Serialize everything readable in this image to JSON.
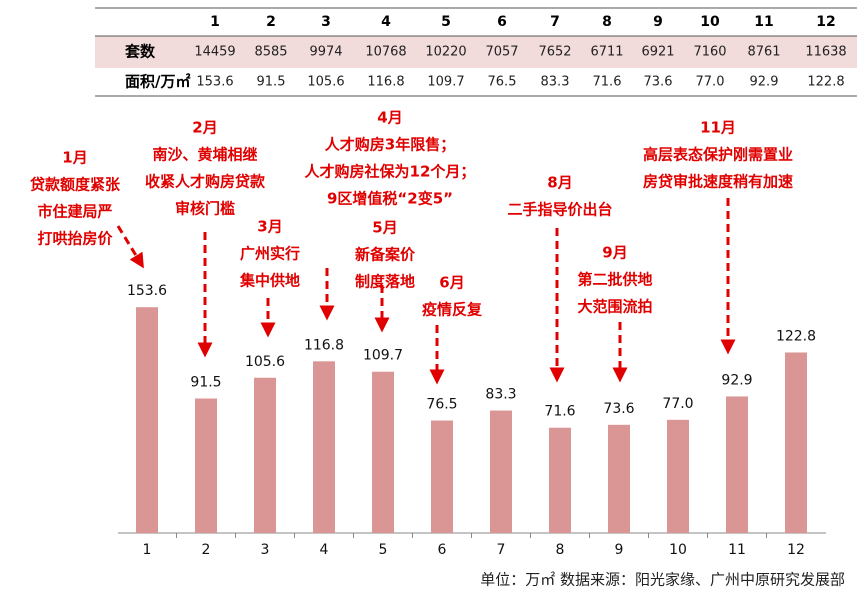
{
  "chart_data": {
    "type": "bar",
    "categories": [
      "1",
      "2",
      "3",
      "4",
      "5",
      "6",
      "7",
      "8",
      "9",
      "10",
      "11",
      "12"
    ],
    "values": [
      153.6,
      91.5,
      105.6,
      116.8,
      109.7,
      76.5,
      83.3,
      71.6,
      73.6,
      77.0,
      92.9,
      122.8
    ],
    "value_labels": [
      "153.6",
      "91.5",
      "105.6",
      "116.8",
      "109.7",
      "76.5",
      "83.3",
      "71.6",
      "73.6",
      "77.0",
      "92.9",
      "122.8"
    ],
    "color": "#d99694",
    "annotations": [
      [
        "1月",
        "贷款额度紧张",
        "市住建局严",
        "打哄抬房价"
      ],
      [
        "2月",
        "南沙、黄埔相继",
        "收紧人才购房贷款",
        "审核门槛"
      ],
      [
        "3月",
        "广州实行",
        "集中供地"
      ],
      [
        "4月",
        "人才购房3年限售；",
        "人才购房社保为12个月；",
        "9区增值税“2变5”"
      ],
      [
        "5月",
        "新备案价",
        "制度落地"
      ],
      [
        "6月",
        "疫情反复"
      ],
      [
        "8月",
        "二手指导价出台"
      ],
      [
        "9月",
        "第二批供地",
        "大范围流拍"
      ],
      [
        "11月",
        "高层表态保护刚需置业",
        "房贷审批速度稍有加速"
      ]
    ],
    "source": "单位：万㎡   数据来源：阳光家缘、广州中原研究发展部"
  },
  "table": {
    "rows": [
      {
        "label": "套数",
        "values": [
          14459,
          8585,
          9974,
          10768,
          10220,
          7057,
          7652,
          6711,
          6921,
          7160,
          8761,
          11638
        ]
      },
      {
        "label": "面积/万㎡"
      }
    ]
  }
}
